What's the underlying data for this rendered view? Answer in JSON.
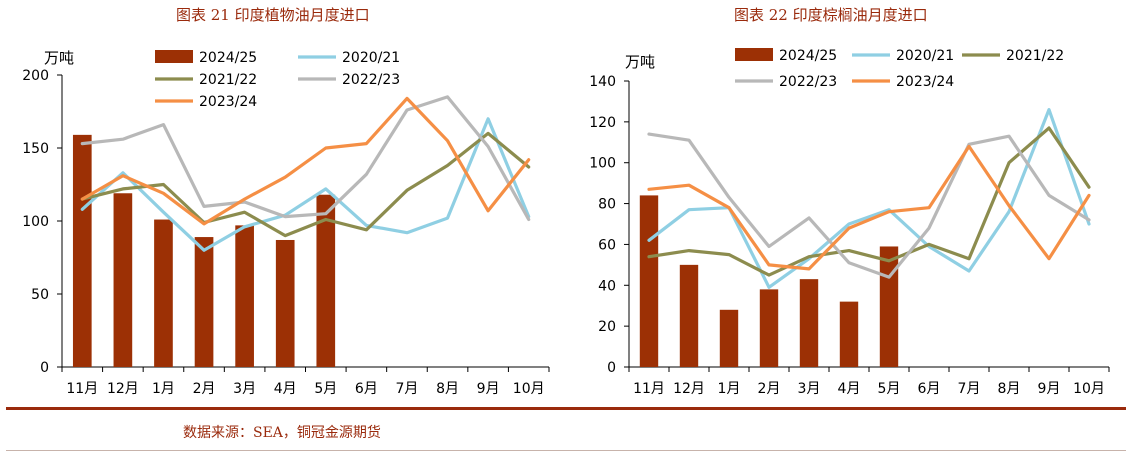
{
  "colors": {
    "bar": "#9c3005",
    "s2020": "#8fcfe3",
    "s2021": "#8c8c4e",
    "s2022": "#b8b8b8",
    "s2023": "#f58f45",
    "title": "#9a2a0c",
    "axis": "#000000"
  },
  "chart_data": [
    {
      "type": "bar+line",
      "title": "图表 21  印度植物油月度进口",
      "ylabel": "万吨",
      "ylim": [
        0,
        200
      ],
      "yticks": [
        0,
        50,
        100,
        150,
        200
      ],
      "categories": [
        "11月",
        "12月",
        "1月",
        "2月",
        "3月",
        "4月",
        "5月",
        "6月",
        "7月",
        "8月",
        "9月",
        "10月"
      ],
      "bars": {
        "name": "2024/25",
        "values": [
          159,
          119,
          101,
          89,
          97,
          87,
          118
        ]
      },
      "series": [
        {
          "name": "2020/21",
          "values": [
            108,
            133,
            106,
            80,
            96,
            104,
            122,
            97,
            92,
            102,
            170,
            103
          ]
        },
        {
          "name": "2021/22",
          "values": [
            115,
            122,
            125,
            99,
            106,
            90,
            101,
            94,
            121,
            138,
            160,
            137
          ]
        },
        {
          "name": "2022/23",
          "values": [
            153,
            156,
            166,
            110,
            113,
            103,
            105,
            132,
            176,
            185,
            151,
            101
          ]
        },
        {
          "name": "2023/24",
          "values": [
            115,
            131,
            119,
            98,
            115,
            130,
            150,
            153,
            184,
            155,
            107,
            142
          ]
        }
      ],
      "legend_position": "top"
    },
    {
      "type": "bar+line",
      "title": "图表 22  印度棕榈油月度进口",
      "ylabel": "万吨",
      "ylim": [
        0,
        140
      ],
      "yticks": [
        0,
        20,
        40,
        60,
        80,
        100,
        120,
        140
      ],
      "categories": [
        "11月",
        "12月",
        "1月",
        "2月",
        "3月",
        "4月",
        "5月",
        "6月",
        "7月",
        "8月",
        "9月",
        "10月"
      ],
      "bars": {
        "name": "2024/25",
        "values": [
          84,
          50,
          28,
          38,
          43,
          32,
          59
        ]
      },
      "series": [
        {
          "name": "2020/21",
          "values": [
            62,
            77,
            78,
            39,
            53,
            70,
            77,
            59,
            47,
            76,
            126,
            70
          ]
        },
        {
          "name": "2021/22",
          "values": [
            54,
            57,
            55,
            45,
            54,
            57,
            52,
            60,
            53,
            100,
            117,
            88
          ]
        },
        {
          "name": "2022/23",
          "values": [
            114,
            111,
            83,
            59,
            73,
            51,
            44,
            68,
            109,
            113,
            84,
            72
          ]
        },
        {
          "name": "2023/24",
          "values": [
            87,
            89,
            78,
            50,
            48,
            68,
            76,
            78,
            108,
            79,
            53,
            84
          ]
        }
      ],
      "legend_position": "top"
    }
  ],
  "source": "数据来源：SEA，铜冠金源期货"
}
